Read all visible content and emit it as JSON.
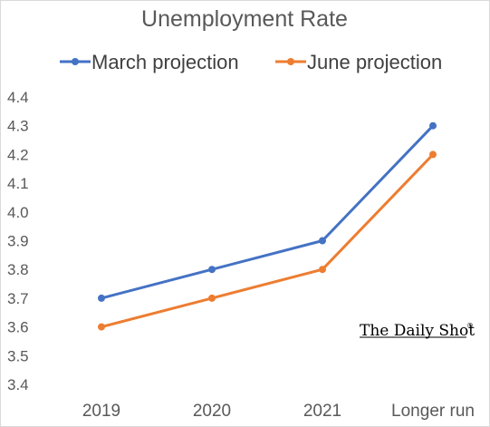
{
  "chart_data": {
    "type": "line",
    "title": "Unemployment Rate",
    "categories": [
      "2019",
      "2020",
      "2021",
      "Longer run"
    ],
    "series": [
      {
        "name": "March projection",
        "color": "#4472c4",
        "values": [
          3.7,
          3.8,
          3.9,
          4.3
        ]
      },
      {
        "name": "June projection",
        "color": "#ed7d31",
        "values": [
          3.6,
          3.7,
          3.8,
          4.2
        ]
      }
    ],
    "ylim": [
      3.4,
      4.4
    ],
    "yticks": [
      "3.4",
      "3.5",
      "3.6",
      "3.7",
      "3.8",
      "3.9",
      "4.0",
      "4.1",
      "4.2",
      "4.3",
      "4.4"
    ],
    "xlabel": "",
    "ylabel": "",
    "grid": false,
    "legend_position": "top"
  },
  "watermark": {
    "text": "The Daily Shot",
    "mark": "®"
  }
}
